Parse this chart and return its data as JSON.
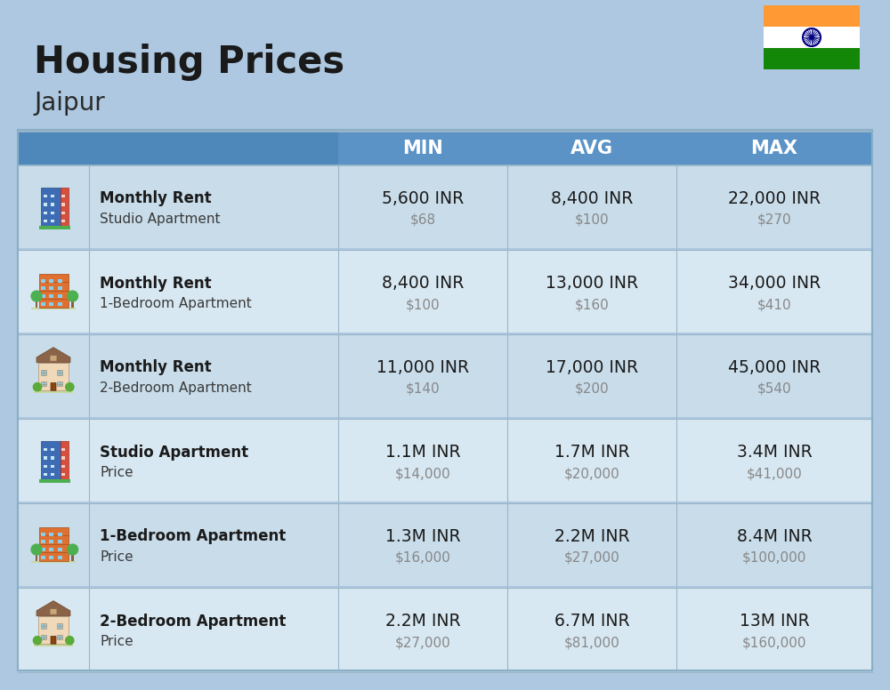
{
  "title": "Housing Prices",
  "subtitle": "Jaipur",
  "bg_color": "#adc8e0",
  "header_color": "#5b93c7",
  "header_left_color": "#4a80b0",
  "col_headers": [
    "MIN",
    "AVG",
    "MAX"
  ],
  "row_colors": [
    "#c8dcea",
    "#d8e8f2",
    "#c8dcea",
    "#d8e8f2",
    "#c8dcea",
    "#d8e8f2"
  ],
  "divider_color": "#9ab5c8",
  "rows": [
    {
      "bold_label": "Monthly Rent",
      "sub_label": "Studio Apartment",
      "min_inr": "5,600 INR",
      "min_usd": "$68",
      "avg_inr": "8,400 INR",
      "avg_usd": "$100",
      "max_inr": "22,000 INR",
      "max_usd": "$270",
      "icon_type": "studio_blue"
    },
    {
      "bold_label": "Monthly Rent",
      "sub_label": "1-Bedroom Apartment",
      "min_inr": "8,400 INR",
      "min_usd": "$100",
      "avg_inr": "13,000 INR",
      "avg_usd": "$160",
      "max_inr": "34,000 INR",
      "max_usd": "$410",
      "icon_type": "one_bed_orange"
    },
    {
      "bold_label": "Monthly Rent",
      "sub_label": "2-Bedroom Apartment",
      "min_inr": "11,000 INR",
      "min_usd": "$140",
      "avg_inr": "17,000 INR",
      "avg_usd": "$200",
      "max_inr": "45,000 INR",
      "max_usd": "$540",
      "icon_type": "two_bed_tan"
    },
    {
      "bold_label": "Studio Apartment",
      "sub_label": "Price",
      "min_inr": "1.1M INR",
      "min_usd": "$14,000",
      "avg_inr": "1.7M INR",
      "avg_usd": "$20,000",
      "max_inr": "3.4M INR",
      "max_usd": "$41,000",
      "icon_type": "studio_blue"
    },
    {
      "bold_label": "1-Bedroom Apartment",
      "sub_label": "Price",
      "min_inr": "1.3M INR",
      "min_usd": "$16,000",
      "avg_inr": "2.2M INR",
      "avg_usd": "$27,000",
      "max_inr": "8.4M INR",
      "max_usd": "$100,000",
      "icon_type": "one_bed_orange"
    },
    {
      "bold_label": "2-Bedroom Apartment",
      "sub_label": "Price",
      "min_inr": "2.2M INR",
      "min_usd": "$27,000",
      "avg_inr": "6.7M INR",
      "avg_usd": "$81,000",
      "max_inr": "13M INR",
      "max_usd": "$160,000",
      "icon_type": "two_bed_tan"
    }
  ]
}
